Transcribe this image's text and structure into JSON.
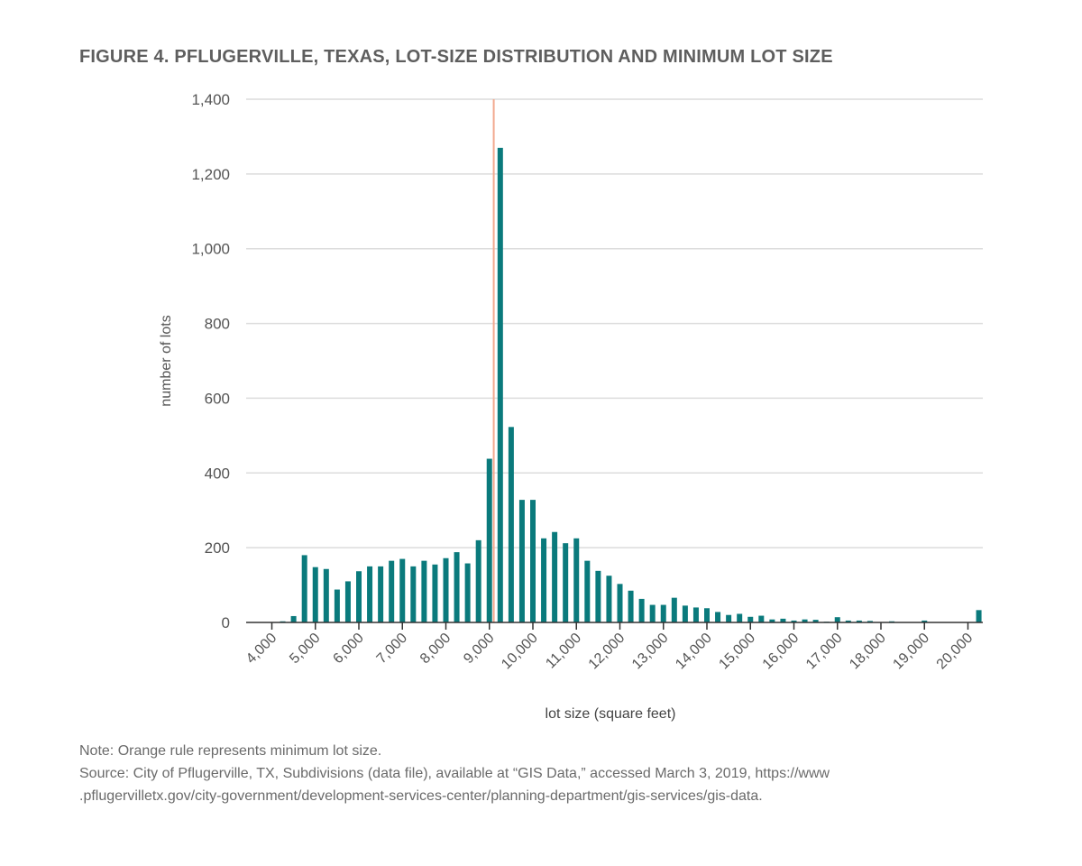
{
  "title": "FIGURE 4. PFLUGERVILLE, TEXAS, LOT-SIZE DISTRIBUTION AND MINIMUM LOT SIZE",
  "notes": {
    "note": "Note: Orange rule represents minimum lot size.",
    "source_line1": "Source: City of Pflugerville, TX, Subdivisions (data file), available at “GIS Data,” accessed March 3, 2019, https://www",
    "source_line2": ".pflugervilletx.gov/city-government/development-services-center/planning-department/gis-services/gis-data."
  },
  "chart_data": {
    "type": "bar",
    "title": "FIGURE 4. PFLUGERVILLE, TEXAS, LOT-SIZE DISTRIBUTION AND MINIMUM LOT SIZE",
    "xlabel": "lot size (square feet)",
    "ylabel": "number of lots",
    "xlim": [
      4000,
      20250
    ],
    "ylim": [
      0,
      1400
    ],
    "grid": true,
    "bar_color": "#0a7a7c",
    "rule_color": "#f2a98f",
    "minimum_lot_size": 9100,
    "x_ticks": [
      4000,
      5000,
      6000,
      7000,
      8000,
      9000,
      10000,
      11000,
      12000,
      13000,
      14000,
      15000,
      16000,
      17000,
      18000,
      19000,
      20000
    ],
    "x_tick_labels": [
      "4,000",
      "5,000",
      "6,000",
      "7,000",
      "8,000",
      "9,000",
      "10,000",
      "11,000",
      "12,000",
      "13,000",
      "14,000",
      "15,000",
      "16,000",
      "17,000",
      "18,000",
      "19,000",
      "20,000"
    ],
    "y_ticks": [
      0,
      200,
      400,
      600,
      800,
      1000,
      1200,
      1400
    ],
    "y_tick_labels": [
      "0",
      "200",
      "400",
      "600",
      "800",
      "1,000",
      "1,200",
      "1,400"
    ],
    "x": [
      4250,
      4500,
      4750,
      5000,
      5250,
      5500,
      5750,
      6000,
      6250,
      6500,
      6750,
      7000,
      7250,
      7500,
      7750,
      8000,
      8250,
      8500,
      8750,
      9000,
      9250,
      9500,
      9750,
      10000,
      10250,
      10500,
      10750,
      11000,
      11250,
      11500,
      11750,
      12000,
      12250,
      12500,
      12750,
      13000,
      13250,
      13500,
      13750,
      14000,
      14250,
      14500,
      14750,
      15000,
      15250,
      15500,
      15750,
      16000,
      16250,
      16500,
      16750,
      17000,
      17250,
      17500,
      17750,
      18000,
      18250,
      18500,
      18750,
      19000,
      19250,
      19500,
      19750,
      20000,
      20250
    ],
    "values": [
      3,
      17,
      180,
      148,
      143,
      88,
      110,
      137,
      150,
      150,
      165,
      170,
      150,
      165,
      155,
      172,
      188,
      158,
      220,
      438,
      1270,
      523,
      328,
      328,
      225,
      242,
      212,
      225,
      165,
      138,
      125,
      103,
      85,
      63,
      47,
      47,
      66,
      45,
      40,
      38,
      28,
      20,
      23,
      15,
      18,
      8,
      10,
      5,
      8,
      7,
      2,
      14,
      5,
      5,
      4,
      1,
      3,
      1,
      1,
      5,
      1,
      1,
      1,
      1,
      33
    ]
  }
}
